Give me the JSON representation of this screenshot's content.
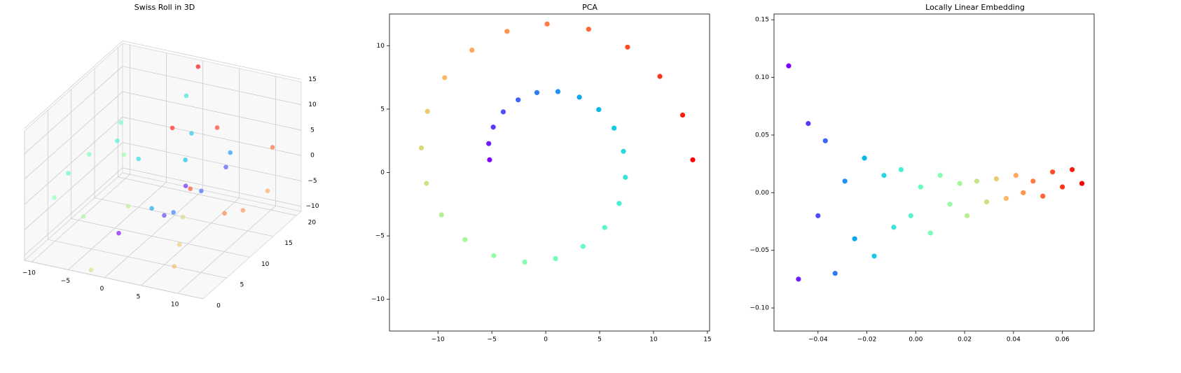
{
  "chart_data": [
    {
      "type": "scatter3d",
      "title": "Swiss Roll in 3D",
      "colormap": "rainbow",
      "alpha": 0.65,
      "x": [
        0,
        1.5,
        3.04,
        4.45,
        5.56,
        6.23,
        6.33,
        5.81,
        4.66,
        2.94,
        0.79,
        -1.62,
        -4.05,
        -6.28,
        -8.04,
        -9.17,
        -9.48,
        -8.89,
        -7.4,
        -5.1,
        -2.19,
        1.11,
        4.49,
        7.62,
        10.18,
        11.92,
        12.6,
        12.12,
        10.46,
        7.74,
        4.15,
        0
      ],
      "y": [
        3,
        15,
        8,
        19,
        12,
        5,
        17,
        1,
        10,
        14,
        6,
        20,
        9,
        2,
        16,
        11,
        4,
        18,
        7,
        13,
        0.5,
        15,
        9,
        3,
        19,
        11,
        6,
        17,
        2,
        12,
        8,
        20
      ],
      "z": [
        -4.71,
        -4.79,
        -4.37,
        -3.44,
        -2.06,
        -0.32,
        1.63,
        3.62,
        5.42,
        6.84,
        7.71,
        7.89,
        7.31,
        5.97,
        3.96,
        1.41,
        -1.45,
        -4.32,
        -7,
        -9.17,
        -10.57,
        -11.04,
        -10.48,
        -8.88,
        -6.35,
        -3.09,
        0.63,
        4.48,
        8.09,
        11.09,
        13.2,
        14.14
      ],
      "color_values": [
        0,
        0.032,
        0.065,
        0.097,
        0.129,
        0.161,
        0.194,
        0.226,
        0.258,
        0.29,
        0.323,
        0.355,
        0.387,
        0.419,
        0.452,
        0.484,
        0.516,
        0.548,
        0.581,
        0.613,
        0.645,
        0.677,
        0.71,
        0.742,
        0.774,
        0.806,
        0.839,
        0.871,
        0.903,
        0.935,
        0.968,
        1
      ],
      "xlim": [
        -11,
        13.5
      ],
      "ylim": [
        0,
        21
      ],
      "zlim": [
        -11,
        14.5
      ],
      "xticks": [
        {
          "value": -10,
          "label": "−10"
        },
        {
          "value": -5,
          "label": "−5"
        },
        0,
        5,
        10
      ],
      "yticks": [
        0,
        5,
        10,
        15,
        20
      ],
      "zticks": [
        {
          "value": -10,
          "label": "−10"
        },
        {
          "value": -5,
          "label": "−5"
        },
        0,
        5,
        10,
        15
      ]
    },
    {
      "type": "scatter",
      "title": "PCA",
      "colormap": "rainbow",
      "x": [
        -5.21,
        -5.29,
        -4.87,
        -3.94,
        -2.56,
        -0.82,
        1.13,
        3.12,
        4.92,
        6.34,
        7.21,
        7.39,
        6.81,
        5.47,
        3.46,
        0.91,
        -1.95,
        -4.82,
        -7.5,
        -9.67,
        -11.07,
        -11.54,
        -10.98,
        -9.38,
        -6.85,
        -3.59,
        0.13,
        3.98,
        7.59,
        10.59,
        12.7,
        13.64
      ],
      "y": [
        1,
        2.28,
        3.58,
        4.78,
        5.73,
        6.3,
        6.38,
        5.94,
        4.96,
        3.5,
        1.67,
        -0.38,
        -2.44,
        -4.34,
        -5.83,
        -6.79,
        -7.06,
        -6.56,
        -5.29,
        -3.34,
        -0.86,
        1.94,
        4.82,
        7.48,
        9.65,
        11.13,
        11.71,
        11.3,
        9.89,
        7.58,
        4.53,
        1
      ],
      "color_values": [
        0,
        0.032,
        0.065,
        0.097,
        0.129,
        0.161,
        0.194,
        0.226,
        0.258,
        0.29,
        0.323,
        0.355,
        0.387,
        0.419,
        0.452,
        0.484,
        0.516,
        0.548,
        0.581,
        0.613,
        0.645,
        0.677,
        0.71,
        0.742,
        0.774,
        0.806,
        0.839,
        0.871,
        0.903,
        0.935,
        0.968,
        1
      ],
      "xlim": [
        -14.5,
        15.2
      ],
      "ylim": [
        -12.5,
        12.5
      ],
      "xticks": [
        {
          "value": -10,
          "label": "−10"
        },
        {
          "value": -5,
          "label": "−5"
        },
        0,
        5,
        10,
        15
      ],
      "yticks": [
        {
          "value": -10,
          "label": "−10"
        },
        {
          "value": -5,
          "label": "−5"
        },
        0,
        5,
        10
      ]
    },
    {
      "type": "scatter",
      "title": "Locally Linear Embedding",
      "colormap": "rainbow",
      "x": [
        -0.052,
        -0.048,
        -0.044,
        -0.04,
        -0.037,
        -0.033,
        -0.029,
        -0.025,
        -0.021,
        -0.017,
        -0.013,
        -0.009,
        -0.006,
        -0.002,
        0.002,
        0.006,
        0.01,
        0.014,
        0.018,
        0.021,
        0.025,
        0.029,
        0.033,
        0.037,
        0.041,
        0.044,
        0.048,
        0.052,
        0.056,
        0.06,
        0.064,
        0.068
      ],
      "y": [
        0.11,
        -0.075,
        0.06,
        -0.02,
        0.045,
        -0.07,
        0.01,
        -0.04,
        0.03,
        -0.055,
        0.015,
        -0.03,
        0.02,
        -0.02,
        0.005,
        -0.035,
        0.015,
        -0.01,
        0.008,
        -0.02,
        0.01,
        -0.008,
        0.012,
        -0.005,
        0.015,
        0,
        0.01,
        -0.003,
        0.018,
        0.005,
        0.02,
        0.008
      ],
      "color_values": [
        0,
        0.032,
        0.065,
        0.097,
        0.129,
        0.161,
        0.194,
        0.226,
        0.258,
        0.29,
        0.323,
        0.355,
        0.387,
        0.419,
        0.452,
        0.484,
        0.516,
        0.548,
        0.581,
        0.613,
        0.645,
        0.677,
        0.71,
        0.742,
        0.774,
        0.806,
        0.839,
        0.871,
        0.903,
        0.935,
        0.968,
        1
      ],
      "xlim": [
        -0.058,
        0.073
      ],
      "ylim": [
        -0.12,
        0.155
      ],
      "xticks": [
        {
          "value": -0.04,
          "label": "−0.04"
        },
        {
          "value": -0.02,
          "label": "−0.02"
        },
        {
          "value": 0,
          "label": "0.00"
        },
        {
          "value": 0.02,
          "label": "0.02"
        },
        {
          "value": 0.04,
          "label": "0.04"
        },
        {
          "value": 0.06,
          "label": "0.06"
        }
      ],
      "yticks": [
        {
          "value": -0.1,
          "label": "−0.10"
        },
        {
          "value": -0.05,
          "label": "−0.05"
        },
        {
          "value": 0,
          "label": "0.00"
        },
        {
          "value": 0.05,
          "label": "0.05"
        },
        {
          "value": 0.1,
          "label": "0.10"
        },
        {
          "value": 0.15,
          "label": "0.15"
        }
      ]
    }
  ]
}
